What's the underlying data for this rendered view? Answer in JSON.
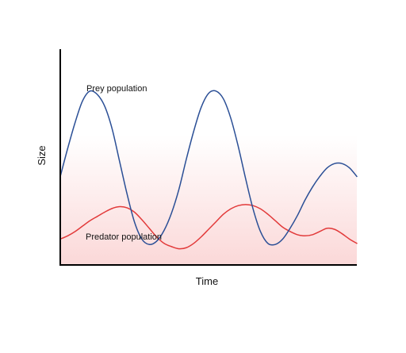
{
  "chart_data": {
    "type": "line",
    "title": "",
    "xlabel": "Time",
    "ylabel": "Size",
    "xlim": [
      0,
      1
    ],
    "ylim": [
      0,
      1
    ],
    "grid": false,
    "legend": "none",
    "background": {
      "top": "#ffffff",
      "bottom": "#fbd8d8"
    },
    "series": [
      {
        "name": "Prey population",
        "color": "#2b4f96",
        "x": [
          0,
          0.025,
          0.05,
          0.075,
          0.1,
          0.125,
          0.15,
          0.175,
          0.2,
          0.225,
          0.25,
          0.275,
          0.3,
          0.325,
          0.35,
          0.375,
          0.4,
          0.425,
          0.45,
          0.475,
          0.5,
          0.525,
          0.55,
          0.575,
          0.6,
          0.625,
          0.65,
          0.675,
          0.7,
          0.725,
          0.75,
          0.775,
          0.8,
          0.825,
          0.85,
          0.875,
          0.9,
          0.925,
          0.95,
          0.975,
          1
        ],
        "y": [
          0.41,
          0.54,
          0.66,
          0.76,
          0.806,
          0.79,
          0.735,
          0.63,
          0.48,
          0.33,
          0.2,
          0.12,
          0.095,
          0.11,
          0.16,
          0.24,
          0.35,
          0.49,
          0.62,
          0.73,
          0.795,
          0.806,
          0.77,
          0.68,
          0.55,
          0.4,
          0.26,
          0.155,
          0.1,
          0.095,
          0.12,
          0.17,
          0.23,
          0.3,
          0.36,
          0.41,
          0.45,
          0.47,
          0.47,
          0.45,
          0.41
        ]
      },
      {
        "name": "Predator population",
        "color": "#e23a3a",
        "x": [
          0,
          0.025,
          0.05,
          0.075,
          0.1,
          0.125,
          0.15,
          0.175,
          0.2,
          0.225,
          0.25,
          0.275,
          0.3,
          0.325,
          0.35,
          0.375,
          0.4,
          0.425,
          0.45,
          0.475,
          0.5,
          0.525,
          0.55,
          0.575,
          0.6,
          0.625,
          0.65,
          0.675,
          0.7,
          0.725,
          0.75,
          0.775,
          0.8,
          0.825,
          0.85,
          0.875,
          0.9,
          0.925,
          0.95,
          0.975,
          1
        ],
        "y": [
          0.12,
          0.135,
          0.155,
          0.18,
          0.205,
          0.225,
          0.245,
          0.262,
          0.27,
          0.265,
          0.245,
          0.21,
          0.17,
          0.13,
          0.1,
          0.085,
          0.075,
          0.08,
          0.1,
          0.13,
          0.165,
          0.2,
          0.235,
          0.26,
          0.275,
          0.28,
          0.275,
          0.26,
          0.235,
          0.205,
          0.175,
          0.155,
          0.14,
          0.135,
          0.14,
          0.155,
          0.17,
          0.165,
          0.145,
          0.12,
          0.1
        ]
      }
    ],
    "annotations": [
      {
        "text": "Prey population",
        "series": 0
      },
      {
        "text": "Predator population",
        "series": 1
      }
    ]
  }
}
